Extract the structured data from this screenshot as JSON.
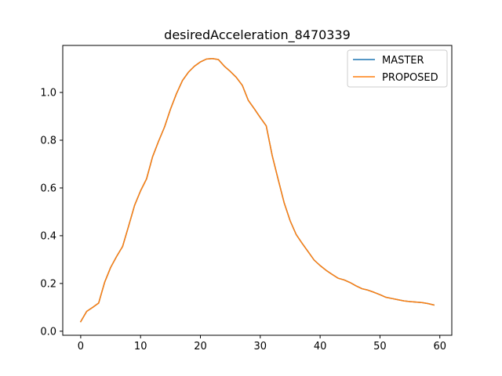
{
  "chart_data": {
    "type": "line",
    "title": "desiredAcceleration_8470339",
    "xlabel": "",
    "ylabel": "",
    "xlim": [
      -3,
      62
    ],
    "ylim": [
      -0.017,
      1.197
    ],
    "xticks": [
      0,
      10,
      20,
      30,
      40,
      50,
      60
    ],
    "xtick_labels": [
      "0",
      "10",
      "20",
      "30",
      "40",
      "50",
      "60"
    ],
    "yticks": [
      0.0,
      0.2,
      0.4,
      0.6,
      0.8,
      1.0
    ],
    "ytick_labels": [
      "0.0",
      "0.2",
      "0.4",
      "0.6",
      "0.8",
      "1.0"
    ],
    "grid": false,
    "legend_position": "top-right",
    "x": [
      0,
      1,
      2,
      3,
      4,
      5,
      6,
      7,
      8,
      9,
      10,
      11,
      12,
      13,
      14,
      15,
      16,
      17,
      18,
      19,
      20,
      21,
      22,
      23,
      24,
      25,
      26,
      27,
      28,
      29,
      30,
      31,
      32,
      33,
      34,
      35,
      36,
      37,
      38,
      39,
      40,
      41,
      42,
      43,
      44,
      45,
      46,
      47,
      48,
      49,
      50,
      51,
      52,
      53,
      54,
      55,
      56,
      57,
      58,
      59
    ],
    "series": [
      {
        "name": "MASTER",
        "color": "#1f77b4",
        "values": [
          0.04,
          0.083,
          0.1,
          0.118,
          0.205,
          0.267,
          0.313,
          0.355,
          0.44,
          0.527,
          0.588,
          0.638,
          0.73,
          0.795,
          0.855,
          0.93,
          0.995,
          1.05,
          1.085,
          1.11,
          1.128,
          1.14,
          1.142,
          1.138,
          1.11,
          1.088,
          1.063,
          1.03,
          0.967,
          0.932,
          0.895,
          0.86,
          0.735,
          0.635,
          0.537,
          0.462,
          0.405,
          0.368,
          0.333,
          0.298,
          0.275,
          0.255,
          0.238,
          0.222,
          0.215,
          0.204,
          0.19,
          0.178,
          0.172,
          0.163,
          0.153,
          0.142,
          0.137,
          0.132,
          0.127,
          0.124,
          0.122,
          0.12,
          0.116,
          0.11
        ]
      },
      {
        "name": "PROPOSED",
        "color": "#ff7f0e",
        "values": [
          0.04,
          0.083,
          0.1,
          0.118,
          0.205,
          0.267,
          0.313,
          0.355,
          0.44,
          0.527,
          0.588,
          0.638,
          0.73,
          0.795,
          0.855,
          0.93,
          0.995,
          1.05,
          1.085,
          1.11,
          1.128,
          1.14,
          1.142,
          1.138,
          1.11,
          1.088,
          1.063,
          1.03,
          0.967,
          0.932,
          0.895,
          0.86,
          0.735,
          0.635,
          0.537,
          0.462,
          0.405,
          0.368,
          0.333,
          0.298,
          0.275,
          0.255,
          0.238,
          0.222,
          0.215,
          0.204,
          0.19,
          0.178,
          0.172,
          0.163,
          0.153,
          0.142,
          0.137,
          0.132,
          0.127,
          0.124,
          0.122,
          0.12,
          0.116,
          0.11
        ]
      }
    ]
  }
}
